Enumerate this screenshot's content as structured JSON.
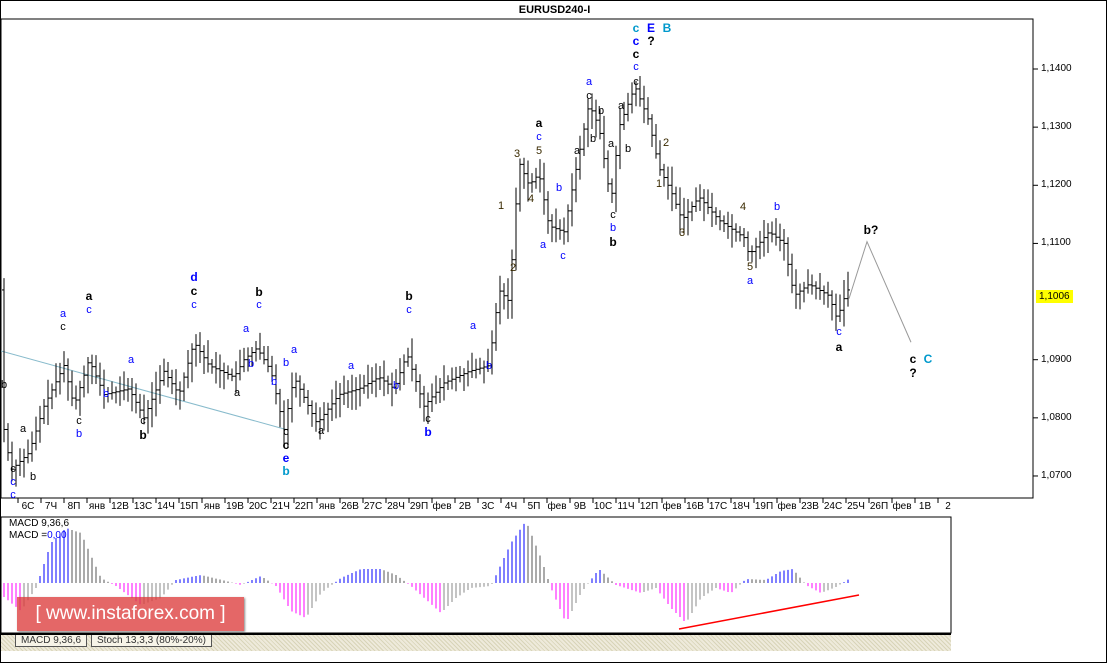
{
  "title": "EURUSD240-I",
  "price_axis": [
    "1,1400",
    "1,1300",
    "1,1200",
    "1,1100",
    "1,0900",
    "1,0800",
    "1,0700"
  ],
  "current_price": "1,1006",
  "time_axis": [
    "6C",
    "7Ч",
    "8П",
    "янв",
    "12В",
    "13С",
    "14Ч",
    "15П",
    "янв",
    "19В",
    "20С",
    "21Ч",
    "22П",
    "янв",
    "26В",
    "27С",
    "28Ч",
    "29П",
    "фев",
    "2В",
    "3С",
    "4Ч",
    "5П",
    "фев",
    "9В",
    "10С",
    "11Ч",
    "12П",
    "фев",
    "16В",
    "17С",
    "18Ч",
    "19П",
    "фев",
    "23В",
    "24С",
    "25Ч",
    "26П",
    "фев",
    "1В",
    "2"
  ],
  "macd": {
    "line1": "MACD 9,36,6",
    "line2_prefix": "MACD =",
    "line2_value": "0,00"
  },
  "tabs": [
    "MACD 9,36,6",
    "Stoch 13,3,3 (80%-20%)"
  ],
  "watermark": "[ www.instaforex.com ]",
  "colors": {
    "blue": "#0000ff",
    "teal": "#0099cc",
    "black": "#000000",
    "num": "#3a2a00",
    "magenta": "#ff00ff",
    "red": "#ff0000",
    "trend": "#88bbcc"
  },
  "wave_labels": [
    "b",
    "c",
    "c",
    "c",
    "a",
    "b",
    "a",
    "c",
    "a",
    "c",
    "b",
    "c",
    "b",
    "a",
    "c",
    "b",
    "d",
    "c",
    "c",
    "a",
    "b",
    "a",
    "b",
    "c",
    "b",
    "a",
    "b",
    "c",
    "c",
    "e",
    "b",
    "a",
    "a",
    "b",
    "b",
    "c",
    "a",
    "b",
    "c",
    "b",
    "1",
    "2",
    "3",
    "4",
    "5",
    "c",
    "a",
    "b",
    "a",
    "c",
    "a",
    "a",
    "c",
    "b",
    "a",
    "b",
    "c",
    "b",
    "b",
    "a",
    "b",
    "c",
    "c",
    "c",
    "c",
    "c",
    "E",
    "?",
    "B",
    "2",
    "1",
    "3",
    "4",
    "b",
    "5",
    "a",
    "c",
    "a",
    "b?",
    "c",
    "?",
    "C"
  ]
}
